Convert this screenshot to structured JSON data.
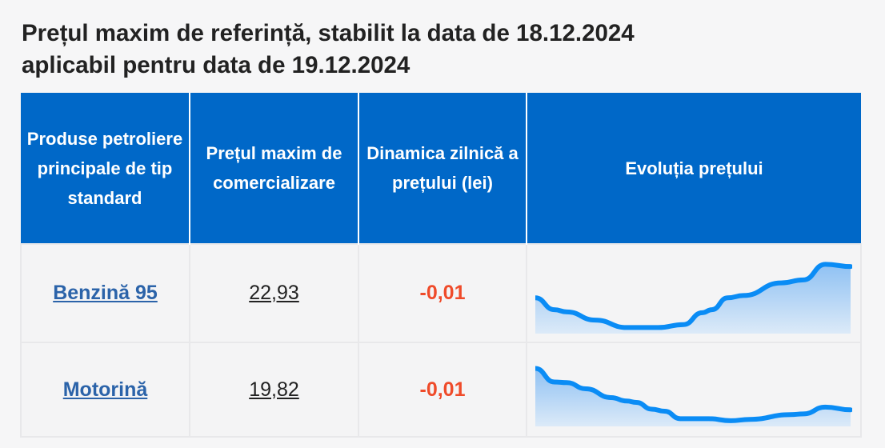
{
  "title_line1": "Prețul maxim de referință, stabilit la data de 18.12.2024",
  "title_line2": "aplicabil pentru data de 19.12.2024",
  "headers": [
    "Produse petroliere principale de tip standard",
    "Prețul maxim de comercializare",
    "Dinamica zilnică a prețului (lei)",
    "Evoluția prețului"
  ],
  "rows": [
    {
      "product": "Benzină 95",
      "price": "22,93",
      "delta": "-0,01",
      "trend": {
        "x": [
          0,
          6,
          10,
          19,
          29,
          39,
          47,
          53,
          56,
          61,
          66,
          78,
          85,
          92,
          100
        ],
        "y": [
          46,
          30,
          27,
          16,
          6,
          6,
          10,
          26,
          30,
          46,
          49,
          66,
          70,
          91,
          88
        ]
      }
    },
    {
      "product": "Motorină",
      "price": "19,82",
      "delta": "-0,01",
      "trend": {
        "x": [
          0,
          6,
          10,
          16,
          24,
          29,
          32,
          37,
          41,
          46,
          55,
          62,
          68,
          81,
          85,
          92,
          100
        ],
        "y": [
          83,
          63,
          62,
          53,
          40,
          35,
          33,
          23,
          20,
          9,
          9,
          6,
          8,
          15,
          16,
          26,
          22
        ]
      }
    }
  ],
  "colors": {
    "header": "#0068c8",
    "link": "#2b63a9",
    "negative": "#ef4b2a",
    "line": "#0a8cf5"
  }
}
